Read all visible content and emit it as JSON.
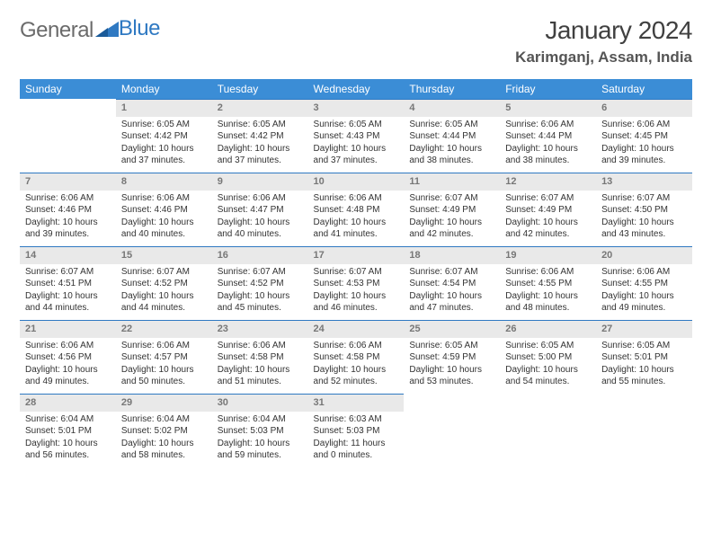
{
  "logo": {
    "word1": "General",
    "word2": "Blue"
  },
  "title": "January 2024",
  "location": "Karimganj, Assam, India",
  "colors": {
    "header_bg": "#3b8dd6",
    "header_text": "#ffffff",
    "daynum_bg": "#e9e9e9",
    "daynum_border": "#2f79c2",
    "daynum_text": "#777777",
    "body_text": "#333333",
    "logo_gray": "#6b6b6b",
    "logo_blue": "#2f79c2",
    "page_bg": "#ffffff"
  },
  "typography": {
    "title_fontsize": 28,
    "location_fontsize": 17,
    "dayheader_fontsize": 12,
    "daynum_fontsize": 11,
    "cell_fontsize": 10
  },
  "day_headers": [
    "Sunday",
    "Monday",
    "Tuesday",
    "Wednesday",
    "Thursday",
    "Friday",
    "Saturday"
  ],
  "weeks": [
    [
      {
        "num": "",
        "sunrise": "",
        "sunset": "",
        "daylight": ""
      },
      {
        "num": "1",
        "sunrise": "Sunrise: 6:05 AM",
        "sunset": "Sunset: 4:42 PM",
        "daylight": "Daylight: 10 hours and 37 minutes."
      },
      {
        "num": "2",
        "sunrise": "Sunrise: 6:05 AM",
        "sunset": "Sunset: 4:42 PM",
        "daylight": "Daylight: 10 hours and 37 minutes."
      },
      {
        "num": "3",
        "sunrise": "Sunrise: 6:05 AM",
        "sunset": "Sunset: 4:43 PM",
        "daylight": "Daylight: 10 hours and 37 minutes."
      },
      {
        "num": "4",
        "sunrise": "Sunrise: 6:05 AM",
        "sunset": "Sunset: 4:44 PM",
        "daylight": "Daylight: 10 hours and 38 minutes."
      },
      {
        "num": "5",
        "sunrise": "Sunrise: 6:06 AM",
        "sunset": "Sunset: 4:44 PM",
        "daylight": "Daylight: 10 hours and 38 minutes."
      },
      {
        "num": "6",
        "sunrise": "Sunrise: 6:06 AM",
        "sunset": "Sunset: 4:45 PM",
        "daylight": "Daylight: 10 hours and 39 minutes."
      }
    ],
    [
      {
        "num": "7",
        "sunrise": "Sunrise: 6:06 AM",
        "sunset": "Sunset: 4:46 PM",
        "daylight": "Daylight: 10 hours and 39 minutes."
      },
      {
        "num": "8",
        "sunrise": "Sunrise: 6:06 AM",
        "sunset": "Sunset: 4:46 PM",
        "daylight": "Daylight: 10 hours and 40 minutes."
      },
      {
        "num": "9",
        "sunrise": "Sunrise: 6:06 AM",
        "sunset": "Sunset: 4:47 PM",
        "daylight": "Daylight: 10 hours and 40 minutes."
      },
      {
        "num": "10",
        "sunrise": "Sunrise: 6:06 AM",
        "sunset": "Sunset: 4:48 PM",
        "daylight": "Daylight: 10 hours and 41 minutes."
      },
      {
        "num": "11",
        "sunrise": "Sunrise: 6:07 AM",
        "sunset": "Sunset: 4:49 PM",
        "daylight": "Daylight: 10 hours and 42 minutes."
      },
      {
        "num": "12",
        "sunrise": "Sunrise: 6:07 AM",
        "sunset": "Sunset: 4:49 PM",
        "daylight": "Daylight: 10 hours and 42 minutes."
      },
      {
        "num": "13",
        "sunrise": "Sunrise: 6:07 AM",
        "sunset": "Sunset: 4:50 PM",
        "daylight": "Daylight: 10 hours and 43 minutes."
      }
    ],
    [
      {
        "num": "14",
        "sunrise": "Sunrise: 6:07 AM",
        "sunset": "Sunset: 4:51 PM",
        "daylight": "Daylight: 10 hours and 44 minutes."
      },
      {
        "num": "15",
        "sunrise": "Sunrise: 6:07 AM",
        "sunset": "Sunset: 4:52 PM",
        "daylight": "Daylight: 10 hours and 44 minutes."
      },
      {
        "num": "16",
        "sunrise": "Sunrise: 6:07 AM",
        "sunset": "Sunset: 4:52 PM",
        "daylight": "Daylight: 10 hours and 45 minutes."
      },
      {
        "num": "17",
        "sunrise": "Sunrise: 6:07 AM",
        "sunset": "Sunset: 4:53 PM",
        "daylight": "Daylight: 10 hours and 46 minutes."
      },
      {
        "num": "18",
        "sunrise": "Sunrise: 6:07 AM",
        "sunset": "Sunset: 4:54 PM",
        "daylight": "Daylight: 10 hours and 47 minutes."
      },
      {
        "num": "19",
        "sunrise": "Sunrise: 6:06 AM",
        "sunset": "Sunset: 4:55 PM",
        "daylight": "Daylight: 10 hours and 48 minutes."
      },
      {
        "num": "20",
        "sunrise": "Sunrise: 6:06 AM",
        "sunset": "Sunset: 4:55 PM",
        "daylight": "Daylight: 10 hours and 49 minutes."
      }
    ],
    [
      {
        "num": "21",
        "sunrise": "Sunrise: 6:06 AM",
        "sunset": "Sunset: 4:56 PM",
        "daylight": "Daylight: 10 hours and 49 minutes."
      },
      {
        "num": "22",
        "sunrise": "Sunrise: 6:06 AM",
        "sunset": "Sunset: 4:57 PM",
        "daylight": "Daylight: 10 hours and 50 minutes."
      },
      {
        "num": "23",
        "sunrise": "Sunrise: 6:06 AM",
        "sunset": "Sunset: 4:58 PM",
        "daylight": "Daylight: 10 hours and 51 minutes."
      },
      {
        "num": "24",
        "sunrise": "Sunrise: 6:06 AM",
        "sunset": "Sunset: 4:58 PM",
        "daylight": "Daylight: 10 hours and 52 minutes."
      },
      {
        "num": "25",
        "sunrise": "Sunrise: 6:05 AM",
        "sunset": "Sunset: 4:59 PM",
        "daylight": "Daylight: 10 hours and 53 minutes."
      },
      {
        "num": "26",
        "sunrise": "Sunrise: 6:05 AM",
        "sunset": "Sunset: 5:00 PM",
        "daylight": "Daylight: 10 hours and 54 minutes."
      },
      {
        "num": "27",
        "sunrise": "Sunrise: 6:05 AM",
        "sunset": "Sunset: 5:01 PM",
        "daylight": "Daylight: 10 hours and 55 minutes."
      }
    ],
    [
      {
        "num": "28",
        "sunrise": "Sunrise: 6:04 AM",
        "sunset": "Sunset: 5:01 PM",
        "daylight": "Daylight: 10 hours and 56 minutes."
      },
      {
        "num": "29",
        "sunrise": "Sunrise: 6:04 AM",
        "sunset": "Sunset: 5:02 PM",
        "daylight": "Daylight: 10 hours and 58 minutes."
      },
      {
        "num": "30",
        "sunrise": "Sunrise: 6:04 AM",
        "sunset": "Sunset: 5:03 PM",
        "daylight": "Daylight: 10 hours and 59 minutes."
      },
      {
        "num": "31",
        "sunrise": "Sunrise: 6:03 AM",
        "sunset": "Sunset: 5:03 PM",
        "daylight": "Daylight: 11 hours and 0 minutes."
      },
      {
        "num": "",
        "sunrise": "",
        "sunset": "",
        "daylight": ""
      },
      {
        "num": "",
        "sunrise": "",
        "sunset": "",
        "daylight": ""
      },
      {
        "num": "",
        "sunrise": "",
        "sunset": "",
        "daylight": ""
      }
    ]
  ]
}
